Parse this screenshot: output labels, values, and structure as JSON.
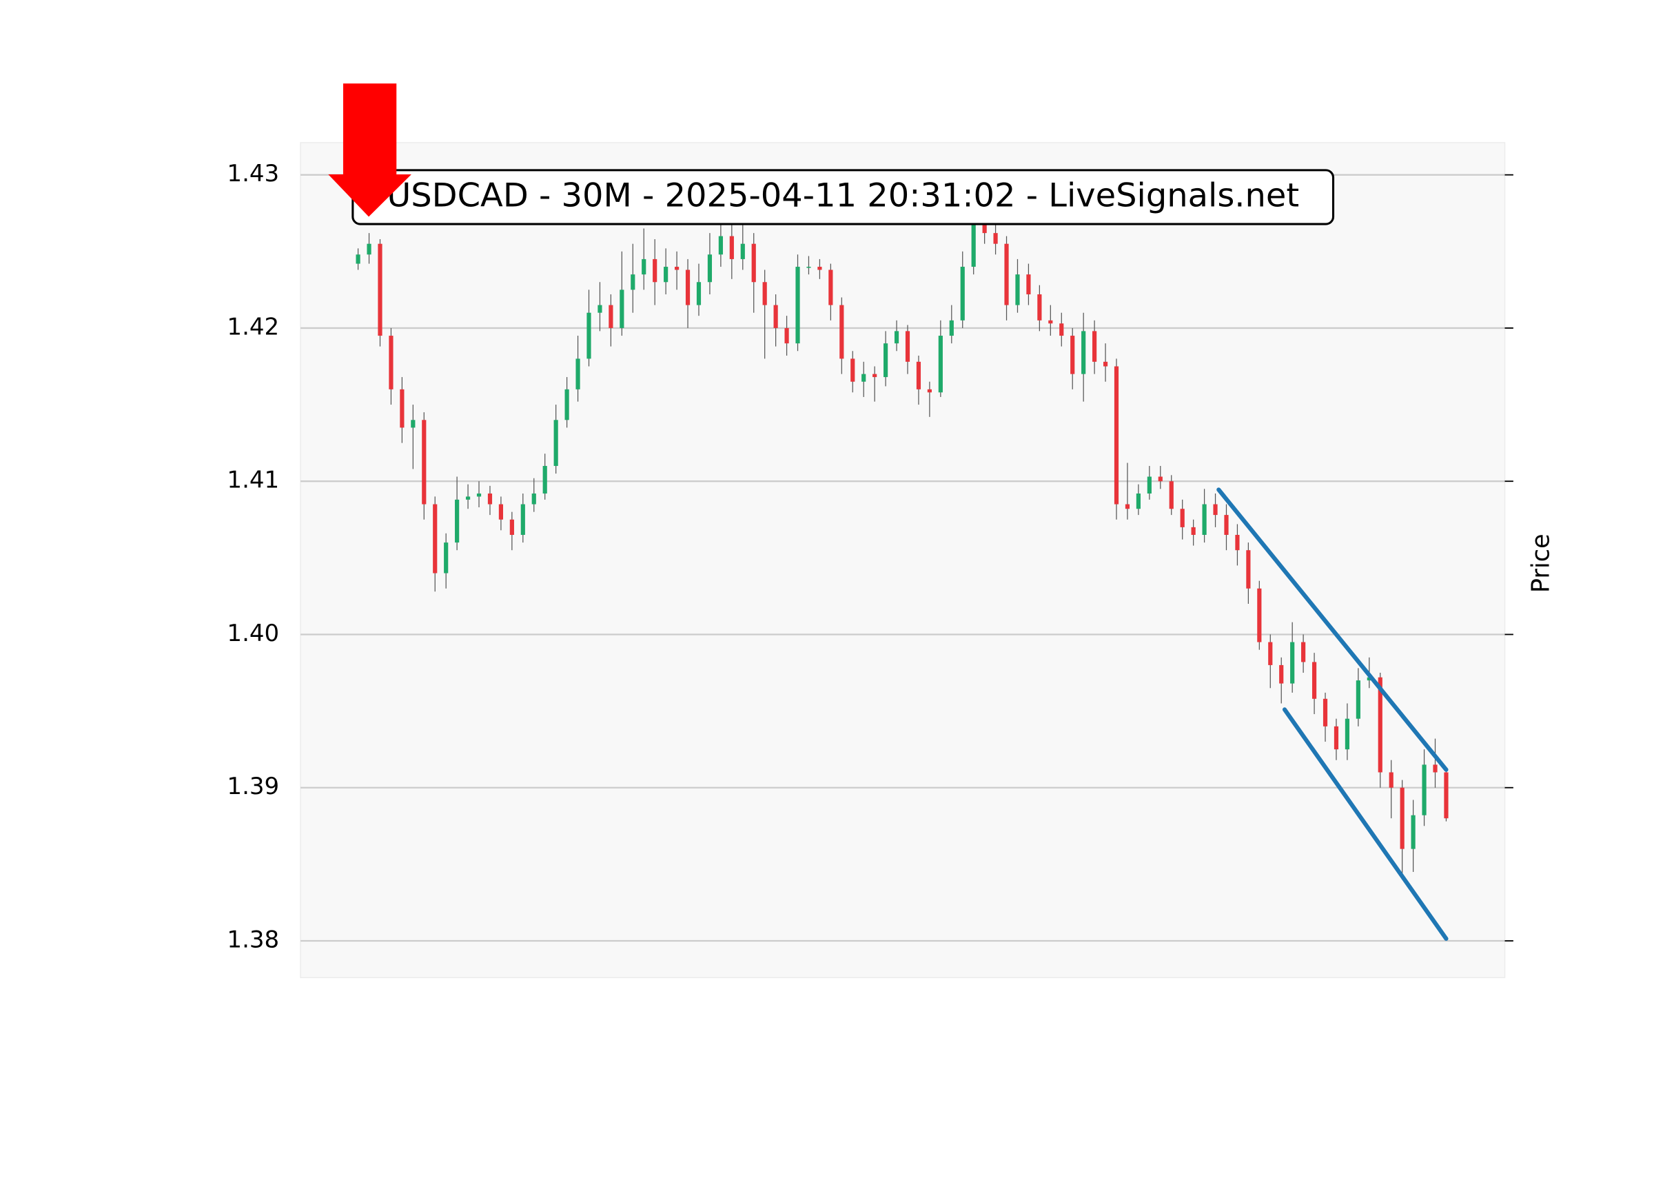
{
  "chart_data": {
    "type": "candlestick",
    "title": "USDCAD - 30M - 2025-04-11 20:31:02 - LiveSignals.net",
    "y_label": "Price",
    "ylim": [
      1.3776,
      1.4321
    ],
    "yticks": [
      1.38,
      1.39,
      {
        "value": 1.4,
        "label": "1.40"
      },
      1.41,
      1.42,
      1.43
    ],
    "grid": true,
    "up_color": "#1faa6a",
    "down_color": "#e8343a",
    "open": [
      1.4242,
      1.4248,
      1.4255,
      1.4195,
      1.416,
      1.4135,
      1.414,
      1.4085,
      1.404,
      1.406,
      1.4088,
      1.409,
      1.4092,
      1.4085,
      1.4075,
      1.4065,
      1.4085,
      1.4092,
      1.411,
      1.414,
      1.416,
      1.418,
      1.421,
      1.4215,
      1.42,
      1.4225,
      1.4235,
      1.4245,
      1.423,
      1.424,
      1.4238,
      1.4215,
      1.423,
      1.4248,
      1.426,
      1.4245,
      1.4255,
      1.423,
      1.4215,
      1.42,
      1.419,
      1.424,
      1.424,
      1.4238,
      1.4215,
      1.418,
      1.4165,
      1.417,
      1.4168,
      1.419,
      1.4198,
      1.4178,
      1.416,
      1.4158,
      1.4195,
      1.4205,
      1.424,
      1.4268,
      1.4262,
      1.4255,
      1.4215,
      1.4235,
      1.4222,
      1.4205,
      1.4203,
      1.4195,
      1.417,
      1.4198,
      1.4178,
      1.4175,
      1.4085,
      1.4082,
      1.4092,
      1.4103,
      1.41,
      1.4082,
      1.407,
      1.4065,
      1.4085,
      1.4078,
      1.4065,
      1.4055,
      1.403,
      1.3995,
      1.398,
      1.3968,
      1.3995,
      1.3982,
      1.3958,
      1.394,
      1.3925,
      1.3945,
      1.397,
      1.3972,
      1.391,
      1.39,
      1.386,
      1.3882,
      1.3915,
      1.391
    ],
    "high": [
      1.4252,
      1.4262,
      1.4258,
      1.42,
      1.4168,
      1.415,
      1.4145,
      1.409,
      1.4066,
      1.4103,
      1.4098,
      1.41,
      1.4097,
      1.409,
      1.408,
      1.4092,
      1.4102,
      1.4118,
      1.415,
      1.4168,
      1.4195,
      1.4225,
      1.423,
      1.4222,
      1.425,
      1.4255,
      1.4265,
      1.4258,
      1.4252,
      1.425,
      1.4245,
      1.4242,
      1.4262,
      1.427,
      1.4268,
      1.4268,
      1.4262,
      1.4238,
      1.4222,
      1.4208,
      1.4248,
      1.4247,
      1.4245,
      1.4242,
      1.422,
      1.4185,
      1.4178,
      1.4175,
      1.4198,
      1.4205,
      1.4202,
      1.4182,
      1.4165,
      1.4205,
      1.4215,
      1.425,
      1.4275,
      1.4272,
      1.4268,
      1.426,
      1.4245,
      1.4242,
      1.4228,
      1.4215,
      1.421,
      1.42,
      1.421,
      1.4205,
      1.419,
      1.418,
      1.4112,
      1.4098,
      1.411,
      1.411,
      1.4104,
      1.4088,
      1.4075,
      1.4095,
      1.4092,
      1.4085,
      1.4072,
      1.406,
      1.4035,
      1.4,
      1.3985,
      1.4008,
      1.4,
      1.3988,
      1.3962,
      1.3945,
      1.3955,
      1.3978,
      1.3985,
      1.3975,
      1.3918,
      1.3905,
      1.3892,
      1.3925,
      1.3932,
      1.3912
    ],
    "low": [
      1.4238,
      1.4242,
      1.4188,
      1.415,
      1.4125,
      1.4108,
      1.4075,
      1.4028,
      1.403,
      1.4055,
      1.4082,
      1.4083,
      1.4078,
      1.4068,
      1.4055,
      1.406,
      1.408,
      1.4088,
      1.4105,
      1.4135,
      1.4152,
      1.4175,
      1.4198,
      1.4188,
      1.4195,
      1.421,
      1.4225,
      1.4215,
      1.4222,
      1.4225,
      1.42,
      1.4208,
      1.4222,
      1.424,
      1.4232,
      1.4238,
      1.421,
      1.418,
      1.4188,
      1.4182,
      1.4185,
      1.4235,
      1.4232,
      1.4205,
      1.417,
      1.4158,
      1.4155,
      1.4152,
      1.4162,
      1.4185,
      1.417,
      1.415,
      1.4142,
      1.4155,
      1.419,
      1.42,
      1.4235,
      1.4255,
      1.4248,
      1.4205,
      1.421,
      1.4215,
      1.4198,
      1.4195,
      1.4188,
      1.416,
      1.4152,
      1.417,
      1.4165,
      1.4075,
      1.4075,
      1.4078,
      1.4088,
      1.4095,
      1.4078,
      1.4062,
      1.4058,
      1.406,
      1.407,
      1.4055,
      1.4045,
      1.402,
      1.399,
      1.3965,
      1.3955,
      1.3962,
      1.3975,
      1.3948,
      1.393,
      1.3918,
      1.3918,
      1.394,
      1.3965,
      1.39,
      1.388,
      1.384,
      1.3845,
      1.3875,
      1.39,
      1.3878
    ],
    "close": [
      1.4248,
      1.4255,
      1.4195,
      1.416,
      1.4135,
      1.414,
      1.4085,
      1.404,
      1.406,
      1.4088,
      1.409,
      1.4092,
      1.4085,
      1.4075,
      1.4065,
      1.4085,
      1.4092,
      1.411,
      1.414,
      1.416,
      1.418,
      1.421,
      1.4215,
      1.42,
      1.4225,
      1.4235,
      1.4245,
      1.423,
      1.424,
      1.4238,
      1.4215,
      1.423,
      1.4248,
      1.426,
      1.4245,
      1.4255,
      1.423,
      1.4215,
      1.42,
      1.419,
      1.424,
      1.424,
      1.4238,
      1.4215,
      1.418,
      1.4165,
      1.417,
      1.4168,
      1.419,
      1.4198,
      1.4178,
      1.416,
      1.4158,
      1.4195,
      1.4205,
      1.424,
      1.4268,
      1.4262,
      1.4255,
      1.4215,
      1.4235,
      1.4222,
      1.4205,
      1.4203,
      1.4195,
      1.417,
      1.4198,
      1.4178,
      1.4175,
      1.4085,
      1.4082,
      1.4092,
      1.4103,
      1.41,
      1.4082,
      1.407,
      1.4065,
      1.4085,
      1.4078,
      1.4065,
      1.4055,
      1.403,
      1.3995,
      1.398,
      1.3968,
      1.3995,
      1.3982,
      1.3958,
      1.394,
      1.3925,
      1.3945,
      1.397,
      1.3972,
      1.391,
      1.39,
      1.386,
      1.3882,
      1.3915,
      1.391,
      1.388
    ],
    "trendlines": [
      {
        "color": "#1f77b4",
        "x": [
          78.3,
          99
        ],
        "y": [
          1.40945,
          1.39117
        ]
      },
      {
        "color": "#1f77b4",
        "x": [
          84.3,
          99
        ],
        "y": [
          1.3951,
          1.38014
        ]
      }
    ]
  }
}
